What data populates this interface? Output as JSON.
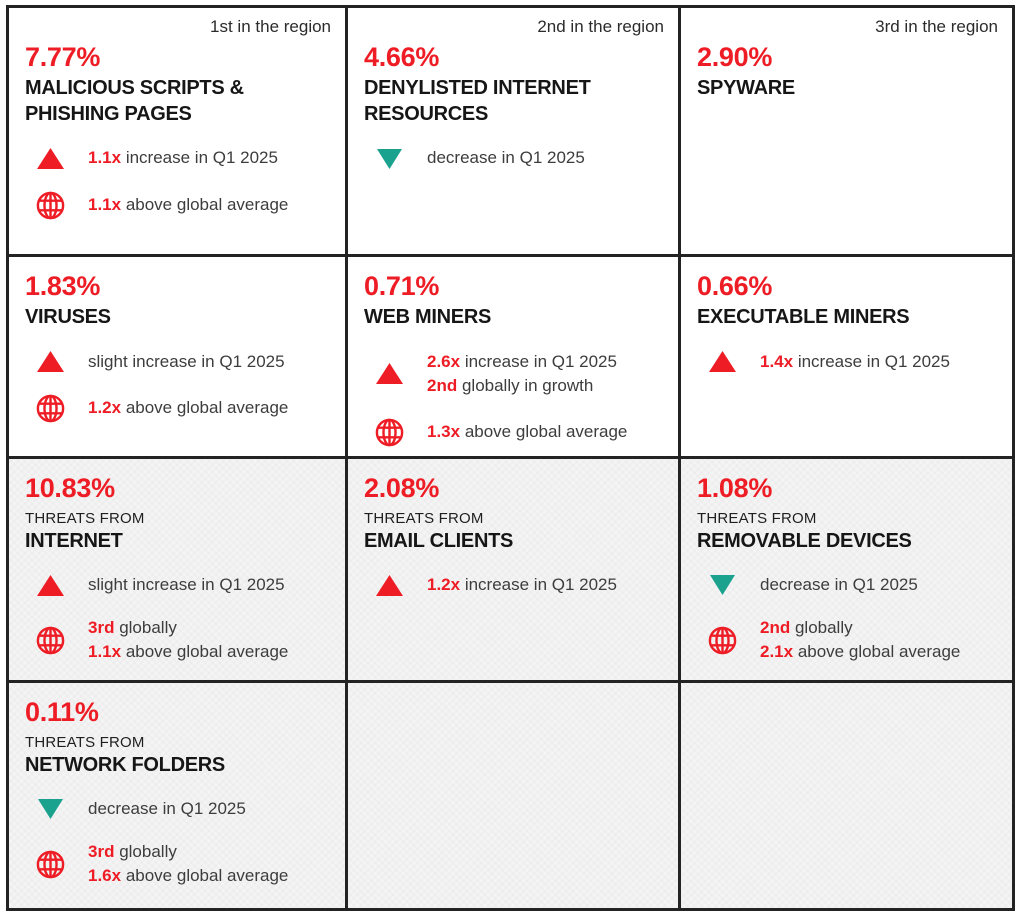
{
  "accent_colors": {
    "red": "#ee1c25",
    "teal": "#1aa28e",
    "alt_cell_bg": "#f4f4f4",
    "grid_border": "#232323"
  },
  "column_headers": [
    "1st in the region",
    "2nd in the region",
    "3rd in the region"
  ],
  "cells": [
    {
      "rank_label": "1st in the region",
      "percent": "7.77%",
      "eyebrow": "",
      "title_lines": [
        "MALICIOUS SCRIPTS &",
        "PHISHING PAGES"
      ],
      "alt_bg": false,
      "stats": [
        {
          "icon": "triangle-up-icon",
          "lines": [
            {
              "prefix": "1.1x",
              "rest": " increase in Q1 2025"
            }
          ]
        },
        {
          "icon": "globe-icon",
          "lines": [
            {
              "prefix": "1.1x",
              "rest": " above global average"
            }
          ]
        }
      ]
    },
    {
      "rank_label": "2nd in the region",
      "percent": "4.66%",
      "eyebrow": "",
      "title_lines": [
        "DENYLISTED INTERNET",
        "RESOURCES"
      ],
      "alt_bg": false,
      "stats": [
        {
          "icon": "triangle-down-icon",
          "lines": [
            {
              "prefix": "",
              "rest": "decrease in Q1 2025"
            }
          ]
        }
      ]
    },
    {
      "rank_label": "3rd in the region",
      "percent": "2.90%",
      "eyebrow": "",
      "title_lines": [
        "SPYWARE"
      ],
      "alt_bg": false,
      "stats": []
    },
    {
      "rank_label": "",
      "percent": "1.83%",
      "eyebrow": "",
      "title_lines": [
        "VIRUSES"
      ],
      "alt_bg": false,
      "stats": [
        {
          "icon": "triangle-up-icon",
          "lines": [
            {
              "prefix": "",
              "rest": "slight increase in Q1 2025"
            }
          ]
        },
        {
          "icon": "globe-icon",
          "lines": [
            {
              "prefix": "1.2x",
              "rest": " above global average"
            }
          ]
        }
      ]
    },
    {
      "rank_label": "",
      "percent": "0.71%",
      "eyebrow": "",
      "title_lines": [
        "WEB MINERS"
      ],
      "alt_bg": false,
      "stats": [
        {
          "icon": "triangle-up-icon",
          "lines": [
            {
              "prefix": "2.6x",
              "rest": " increase in Q1 2025"
            },
            {
              "prefix": "2nd",
              "rest": " globally in growth"
            }
          ]
        },
        {
          "icon": "globe-icon",
          "lines": [
            {
              "prefix": "1.3x",
              "rest": " above global average"
            }
          ]
        }
      ]
    },
    {
      "rank_label": "",
      "percent": "0.66%",
      "eyebrow": "",
      "title_lines": [
        "EXECUTABLE MINERS"
      ],
      "alt_bg": false,
      "stats": [
        {
          "icon": "triangle-up-icon",
          "lines": [
            {
              "prefix": "1.4x",
              "rest": " increase in Q1 2025"
            }
          ]
        }
      ]
    },
    {
      "rank_label": "",
      "percent": "10.83%",
      "eyebrow": "THREATS FROM",
      "title_lines": [
        "INTERNET"
      ],
      "alt_bg": true,
      "stats": [
        {
          "icon": "triangle-up-icon",
          "lines": [
            {
              "prefix": "",
              "rest": "slight increase in Q1 2025"
            }
          ]
        },
        {
          "icon": "globe-icon",
          "lines": [
            {
              "prefix": "3rd",
              "rest": " globally"
            },
            {
              "prefix": "1.1x",
              "rest": " above global average"
            }
          ]
        }
      ]
    },
    {
      "rank_label": "",
      "percent": "2.08%",
      "eyebrow": "THREATS FROM",
      "title_lines": [
        "EMAIL CLIENTS"
      ],
      "alt_bg": true,
      "stats": [
        {
          "icon": "triangle-up-icon",
          "lines": [
            {
              "prefix": "1.2x",
              "rest": " increase in Q1 2025"
            }
          ]
        }
      ]
    },
    {
      "rank_label": "",
      "percent": "1.08%",
      "eyebrow": "THREATS FROM",
      "title_lines": [
        "REMOVABLE DEVICES"
      ],
      "alt_bg": true,
      "stats": [
        {
          "icon": "triangle-down-icon",
          "lines": [
            {
              "prefix": "",
              "rest": "decrease in Q1 2025"
            }
          ]
        },
        {
          "icon": "globe-icon",
          "lines": [
            {
              "prefix": "2nd",
              "rest": " globally"
            },
            {
              "prefix": "2.1x",
              "rest": " above global average"
            }
          ]
        }
      ]
    },
    {
      "rank_label": "",
      "percent": "0.11%",
      "eyebrow": "THREATS FROM",
      "title_lines": [
        "NETWORK FOLDERS"
      ],
      "alt_bg": true,
      "stats": [
        {
          "icon": "triangle-down-icon",
          "lines": [
            {
              "prefix": "",
              "rest": "decrease in Q1 2025"
            }
          ]
        },
        {
          "icon": "globe-icon",
          "lines": [
            {
              "prefix": "3rd",
              "rest": " globally"
            },
            {
              "prefix": "1.6x",
              "rest": " above global average"
            }
          ]
        }
      ]
    },
    {
      "rank_label": "",
      "percent": "",
      "eyebrow": "",
      "title_lines": [],
      "alt_bg": true,
      "stats": []
    },
    {
      "rank_label": "",
      "percent": "",
      "eyebrow": "",
      "title_lines": [],
      "alt_bg": true,
      "stats": []
    }
  ],
  "chart_data": {
    "type": "table",
    "title": "",
    "columns": [
      "1st in the region",
      "2nd in the region",
      "3rd in the region"
    ],
    "rows": [
      {
        "region_rank": "1st in the region",
        "category": "Malicious scripts & phishing pages",
        "share_pct": 7.77,
        "qoq_change": "1.1x increase in Q1 2025",
        "vs_global": "1.1x above global average"
      },
      {
        "region_rank": "2nd in the region",
        "category": "Denylisted internet resources",
        "share_pct": 4.66,
        "qoq_change": "decrease in Q1 2025",
        "vs_global": ""
      },
      {
        "region_rank": "3rd in the region",
        "category": "Spyware",
        "share_pct": 2.9,
        "qoq_change": "",
        "vs_global": ""
      },
      {
        "region_rank": "",
        "category": "Viruses",
        "share_pct": 1.83,
        "qoq_change": "slight increase in Q1 2025",
        "vs_global": "1.2x above global average"
      },
      {
        "region_rank": "",
        "category": "Web miners",
        "share_pct": 0.71,
        "qoq_change": "2.6x increase in Q1 2025; 2nd globally in growth",
        "vs_global": "1.3x above global average"
      },
      {
        "region_rank": "",
        "category": "Executable miners",
        "share_pct": 0.66,
        "qoq_change": "1.4x increase in Q1 2025",
        "vs_global": ""
      },
      {
        "region_rank": "",
        "category": "Threats from internet",
        "share_pct": 10.83,
        "qoq_change": "slight increase in Q1 2025",
        "vs_global": "3rd globally; 1.1x above global average"
      },
      {
        "region_rank": "",
        "category": "Threats from email clients",
        "share_pct": 2.08,
        "qoq_change": "1.2x increase in Q1 2025",
        "vs_global": ""
      },
      {
        "region_rank": "",
        "category": "Threats from removable devices",
        "share_pct": 1.08,
        "qoq_change": "decrease in Q1 2025",
        "vs_global": "2nd globally; 2.1x above global average"
      },
      {
        "region_rank": "",
        "category": "Threats from network folders",
        "share_pct": 0.11,
        "qoq_change": "decrease in Q1 2025",
        "vs_global": "3rd globally; 1.6x above global average"
      }
    ]
  }
}
